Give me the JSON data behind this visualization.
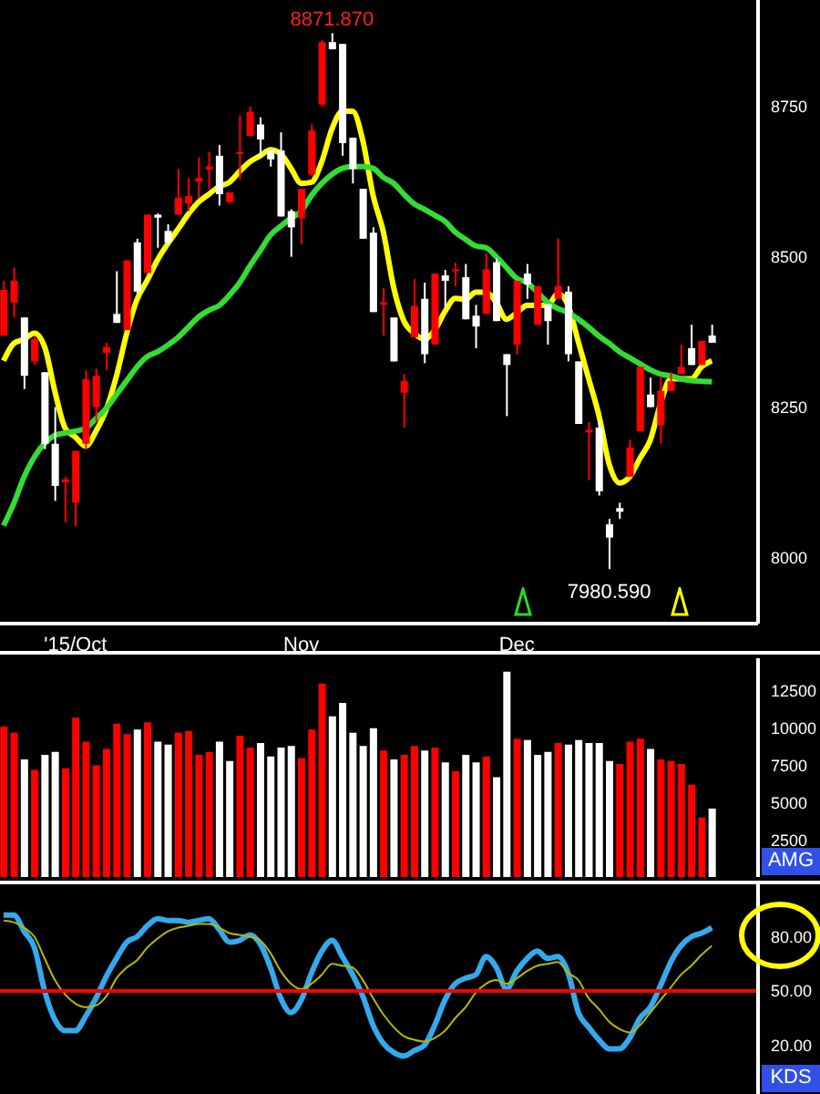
{
  "chart_data": [
    {
      "type": "candlestick",
      "categories": [
        null,
        null,
        null,
        null,
        null,
        null,
        null,
        "'15/Oct",
        null,
        null,
        null,
        null,
        null,
        null,
        null,
        null,
        null,
        null,
        null,
        null,
        null,
        null,
        null,
        null,
        null,
        null,
        null,
        null,
        null,
        "Nov",
        null,
        null,
        null,
        null,
        null,
        null,
        null,
        null,
        null,
        null,
        null,
        null,
        null,
        null,
        null,
        null,
        null,
        null,
        null,
        null,
        "Dec",
        null,
        null,
        null,
        null,
        null,
        null,
        null,
        null,
        null,
        null,
        null,
        null,
        null,
        null,
        null,
        null,
        null,
        null,
        null
      ],
      "ohlc": [
        [
          8369,
          8460,
          8369,
          8445
        ],
        [
          8424,
          8482,
          8399,
          8460
        ],
        [
          8399,
          8399,
          8280,
          8302
        ],
        [
          8326,
          8368,
          8320,
          8363
        ],
        [
          8308,
          8308,
          8180,
          8189
        ],
        [
          8189,
          8250,
          8094,
          8119
        ],
        [
          8125,
          8134,
          8058,
          8130
        ],
        [
          8091,
          8177,
          8052,
          8177
        ],
        [
          8189,
          8311,
          8180,
          8296
        ],
        [
          8250,
          8314,
          8226,
          8302
        ],
        [
          8340,
          8357,
          8311,
          8350
        ],
        [
          8405,
          8476,
          8390,
          8390
        ],
        [
          8378,
          8494,
          8378,
          8494
        ],
        [
          8524,
          8530,
          8439,
          8442
        ],
        [
          8473,
          8570,
          8473,
          8570
        ],
        [
          8570,
          8572,
          8515,
          8565
        ],
        [
          8543,
          8554,
          8520,
          8524
        ],
        [
          8570,
          8646,
          8570,
          8598
        ],
        [
          8589,
          8631,
          8576,
          8601
        ],
        [
          8625,
          8665,
          8598,
          8631
        ],
        [
          8645,
          8674,
          8613,
          8650
        ],
        [
          8668,
          8686,
          8585,
          8604
        ],
        [
          8591,
          8607,
          8589,
          8607
        ],
        [
          8671,
          8735,
          8628,
          8674
        ],
        [
          8701,
          8750,
          8701,
          8741
        ],
        [
          8720,
          8732,
          8665,
          8695
        ],
        [
          8677,
          8677,
          8650,
          8662
        ],
        [
          8677,
          8707,
          8567,
          8567
        ],
        [
          8576,
          8579,
          8500,
          8549
        ],
        [
          8564,
          8613,
          8521,
          8613
        ],
        [
          8637,
          8720,
          8634,
          8710
        ],
        [
          8753,
          8860,
          8750,
          8857
        ],
        [
          8857,
          8871.87,
          8845,
          8845
        ],
        [
          8854,
          8854,
          8668,
          8689
        ],
        [
          8698,
          8698,
          8622,
          8646
        ],
        [
          8613,
          8613,
          8530,
          8530
        ],
        [
          8540,
          8549,
          8408,
          8408
        ],
        [
          8420,
          8448,
          8369,
          8424
        ],
        [
          8399,
          8399,
          8326,
          8326
        ],
        [
          8274,
          8305,
          8216,
          8293
        ],
        [
          8366,
          8463,
          8366,
          8418
        ],
        [
          8430,
          8457,
          8323,
          8338
        ],
        [
          8354,
          8472,
          8354,
          8472
        ],
        [
          8469,
          8478,
          8415,
          8460
        ],
        [
          8476,
          8490,
          8451,
          8479
        ],
        [
          8466,
          8488,
          8396,
          8396
        ],
        [
          8402,
          8420,
          8348,
          8384
        ],
        [
          8405,
          8506,
          8405,
          8479
        ],
        [
          8491,
          8497,
          8393,
          8393
        ],
        [
          8338,
          8338,
          8235,
          8320
        ],
        [
          8354,
          8460,
          8338,
          8460
        ],
        [
          8472,
          8488,
          8430,
          8454
        ],
        [
          8387,
          8451,
          8387,
          8451
        ],
        [
          8421,
          8421,
          8354,
          8393
        ],
        [
          8430,
          8530,
          8430,
          8451
        ],
        [
          8442,
          8451,
          8326,
          8338
        ],
        [
          8326,
          8326,
          8222,
          8222
        ],
        [
          8208,
          8225,
          8128,
          8212
        ],
        [
          8216,
          8228,
          8103,
          8110
        ],
        [
          8055,
          8064,
          7980.59,
          8033
        ],
        [
          8082,
          8091,
          8064,
          8076
        ],
        [
          8134,
          8196,
          8134,
          8183
        ],
        [
          8210,
          8317,
          8210,
          8317
        ],
        [
          8271,
          8299,
          8250,
          8250
        ],
        [
          8220,
          8302,
          8189,
          8277
        ],
        [
          8277,
          8308,
          8277,
          8293
        ],
        [
          8305,
          8354,
          8305,
          8317
        ],
        [
          8348,
          8387,
          8320,
          8320
        ],
        [
          8320,
          8360,
          8320,
          8360
        ],
        [
          8369,
          8387,
          8357,
          8357
        ]
      ],
      "colors": [
        "#ff0000",
        "#ff0000",
        "#ffffff",
        "#ff0000",
        "#ffffff",
        "#ffffff",
        "#ff0000",
        "#ff0000",
        "#ff0000",
        "#ff0000",
        "#ff0000",
        "#ffffff",
        "#ff0000",
        "#ffffff",
        "#ff0000",
        "#ffffff",
        "#ffffff",
        "#ff0000",
        "#ff0000",
        "#ff0000",
        "#ff0000",
        "#ffffff",
        "#ff0000",
        "#ff0000",
        "#ff0000",
        "#ffffff",
        "#ffffff",
        "#ffffff",
        "#ffffff",
        "#ff0000",
        "#ff0000",
        "#ff0000",
        "#ffffff",
        "#ffffff",
        "#ffffff",
        "#ffffff",
        "#ffffff",
        "#ff0000",
        "#ffffff",
        "#ff0000",
        "#ff0000",
        "#ffffff",
        "#ff0000",
        "#ffffff",
        "#ff0000",
        "#ffffff",
        "#ffffff",
        "#ff0000",
        "#ffffff",
        "#ffffff",
        "#ff0000",
        "#ffffff",
        "#ff0000",
        "#ffffff",
        "#ff0000",
        "#ffffff",
        "#ffffff",
        "#ff0000",
        "#ffffff",
        "#ffffff",
        "#ffffff",
        "#ff0000",
        "#ff0000",
        "#ffffff",
        "#ff0000",
        "#ff0000",
        "#ff0000",
        "#ffffff",
        "#ff0000",
        "#ffffff"
      ],
      "series": [
        {
          "type": "line",
          "color": "#ffff00",
          "values": [
            8327,
            8356,
            8363,
            8373,
            8350,
            8276,
            8215,
            8200,
            8185,
            8210,
            8246,
            8302,
            8373,
            8429,
            8461,
            8495,
            8522,
            8546,
            8571,
            8591,
            8604,
            8617,
            8624,
            8642,
            8658,
            8668,
            8678,
            8671,
            8647,
            8622,
            8624,
            8658,
            8713,
            8742,
            8742,
            8693,
            8602,
            8541,
            8449,
            8393,
            8373,
            8363,
            8378,
            8409,
            8431,
            8429,
            8441,
            8441,
            8424,
            8396,
            8407,
            8419,
            8419,
            8419,
            8439,
            8419,
            8358,
            8297,
            8236,
            8155,
            8124,
            8134,
            8165,
            8195,
            8256,
            8297,
            8297,
            8297,
            8317,
            8327
          ]
        },
        {
          "type": "line",
          "color": "#33dd33",
          "values": [
            8053,
            8090,
            8134,
            8167,
            8190,
            8203,
            8207,
            8210,
            8215,
            8231,
            8248,
            8271,
            8294,
            8317,
            8334,
            8342,
            8353,
            8366,
            8383,
            8400,
            8411,
            8419,
            8436,
            8457,
            8485,
            8510,
            8536,
            8551,
            8564,
            8576,
            8602,
            8622,
            8637,
            8647,
            8650,
            8650,
            8647,
            8632,
            8622,
            8604,
            8588,
            8579,
            8569,
            8559,
            8541,
            8529,
            8518,
            8515,
            8500,
            8482,
            8464,
            8457,
            8441,
            8424,
            8414,
            8407,
            8396,
            8383,
            8368,
            8356,
            8342,
            8332,
            8322,
            8312,
            8305,
            8302,
            8297,
            8294,
            8293,
            8292
          ]
        }
      ],
      "marker": "none",
      "ylim": [
        7890,
        8927
      ],
      "yticks": [
        8000,
        8250,
        8500,
        8750
      ],
      "annotations": [
        {
          "text": "8871.870",
          "y": 8871.87
        },
        {
          "text": "7980.590",
          "y": 7980.59
        }
      ]
    },
    {
      "type": "bar",
      "categories": [
        null,
        null,
        null,
        null,
        null,
        null,
        null,
        null,
        null,
        null,
        null,
        null,
        null,
        null,
        null,
        null,
        null,
        null,
        null,
        null,
        null,
        null,
        null,
        null,
        null,
        null,
        null,
        null,
        null,
        null,
        null,
        null,
        null,
        null,
        null,
        null,
        null,
        null,
        null,
        null,
        null,
        null,
        null,
        null,
        null,
        null,
        null,
        null,
        null,
        null,
        null,
        null,
        null,
        null,
        null,
        null,
        null,
        null,
        null,
        null,
        null,
        null,
        null,
        null,
        null,
        null,
        null,
        null,
        null,
        null
      ],
      "values": [
        10100,
        9700,
        7900,
        7200,
        8200,
        8400,
        7300,
        10700,
        9100,
        7500,
        8600,
        10300,
        9600,
        9900,
        10400,
        9100,
        8900,
        9700,
        9800,
        8200,
        8400,
        9100,
        7800,
        9500,
        8700,
        9000,
        8100,
        8700,
        8800,
        8000,
        9900,
        13000,
        10800,
        11700,
        9700,
        8800,
        10000,
        8500,
        7900,
        8200,
        8800,
        8500,
        8700,
        7700,
        7100,
        8200,
        7700,
        8100,
        6700,
        13800,
        9300,
        9200,
        8200,
        8400,
        9000,
        8900,
        9200,
        9000,
        9000,
        7800,
        7600,
        9100,
        9300,
        8600,
        7900,
        7800,
        7600,
        6200,
        4000,
        4600
      ],
      "colors": [
        "#ff0000",
        "#ff0000",
        "#ffffff",
        "#ff0000",
        "#ffffff",
        "#ffffff",
        "#ff0000",
        "#ff0000",
        "#ff0000",
        "#ff0000",
        "#ff0000",
        "#ff0000",
        "#ff0000",
        "#ffffff",
        "#ff0000",
        "#ffffff",
        "#ffffff",
        "#ff0000",
        "#ff0000",
        "#ff0000",
        "#ff0000",
        "#ffffff",
        "#ffffff",
        "#ff0000",
        "#ff0000",
        "#ffffff",
        "#ffffff",
        "#ffffff",
        "#ffffff",
        "#ff0000",
        "#ff0000",
        "#ff0000",
        "#ffffff",
        "#ffffff",
        "#ffffff",
        "#ffffff",
        "#ffffff",
        "#ff0000",
        "#ffffff",
        "#ff0000",
        "#ff0000",
        "#ffffff",
        "#ff0000",
        "#ffffff",
        "#ff0000",
        "#ffffff",
        "#ffffff",
        "#ff0000",
        "#ffffff",
        "#ffffff",
        "#ff0000",
        "#ffffff",
        "#ffffff",
        "#ffffff",
        "#ff0000",
        "#ffffff",
        "#ffffff",
        "#ffffff",
        "#ffffff",
        "#ffffff",
        "#ff0000",
        "#ff0000",
        "#ff0000",
        "#ffffff",
        "#ff0000",
        "#ff0000",
        "#ff0000",
        "#ff0000",
        "#ff0000",
        "#ffffff"
      ],
      "ylim": [
        0,
        14700
      ],
      "yticks": [
        2500,
        5000,
        7500,
        10000,
        12500
      ],
      "ylabel": "AMG",
      "tick_labels": "y"
    },
    {
      "type": "line",
      "categories": [
        null,
        null,
        null,
        null,
        null,
        null,
        null,
        null,
        null,
        null,
        null,
        null,
        null,
        null,
        null,
        null,
        null,
        null,
        null,
        null,
        null,
        null,
        null,
        null,
        null,
        null,
        null,
        null,
        null,
        null,
        null,
        null,
        null,
        null,
        null,
        null,
        null,
        null,
        null,
        null,
        null,
        null,
        null,
        null,
        null,
        null,
        null,
        null,
        null,
        null,
        null,
        null,
        null,
        null,
        null,
        null,
        null,
        null,
        null,
        null,
        null,
        null,
        null,
        null,
        null,
        null,
        null,
        null,
        null,
        null
      ],
      "series": [
        {
          "color": "#33aaee",
          "values": [
            92,
            92,
            83,
            74,
            50,
            34,
            28,
            28,
            36,
            46,
            58,
            68,
            77,
            80,
            86,
            90,
            89,
            89,
            88,
            89,
            90,
            84,
            77,
            78,
            81,
            76,
            63,
            46,
            38,
            45,
            60,
            72,
            78,
            69,
            59,
            47,
            31,
            21,
            16,
            14,
            17,
            20,
            31,
            45,
            54,
            57,
            59,
            69,
            63,
            51,
            61,
            68,
            72,
            68,
            69,
            60,
            38,
            30,
            23,
            18,
            18,
            24,
            35,
            41,
            53,
            66,
            75,
            80,
            82,
            85
          ]
        },
        {
          "color": "#b8b800",
          "values": [
            89,
            88,
            85,
            80,
            68,
            56,
            48,
            43,
            41,
            42,
            47,
            57,
            63,
            67,
            74,
            79,
            83,
            85,
            86,
            87,
            87,
            85,
            82,
            81,
            80,
            78,
            71,
            61,
            54,
            51,
            54,
            59,
            65,
            64,
            63,
            56,
            46,
            37,
            30,
            25,
            23,
            22,
            24,
            28,
            35,
            41,
            49,
            54,
            56,
            54,
            57,
            61,
            64,
            65,
            66,
            60,
            56,
            46,
            40,
            33,
            29,
            27,
            31,
            38,
            45,
            52,
            59,
            64,
            70,
            75
          ]
        }
      ],
      "marker": "none",
      "ylim": [
        -7,
        109
      ],
      "yticks": [
        {
          "value": 20,
          "label": "20.00"
        },
        {
          "value": 50,
          "label": "50.00"
        },
        {
          "value": 80,
          "label": "80.00"
        }
      ],
      "ref_lines": [
        {
          "axis": "y",
          "value": 50,
          "color": "#ff0000"
        }
      ],
      "ylabel": "KDS",
      "tick_labels": "y"
    }
  ]
}
